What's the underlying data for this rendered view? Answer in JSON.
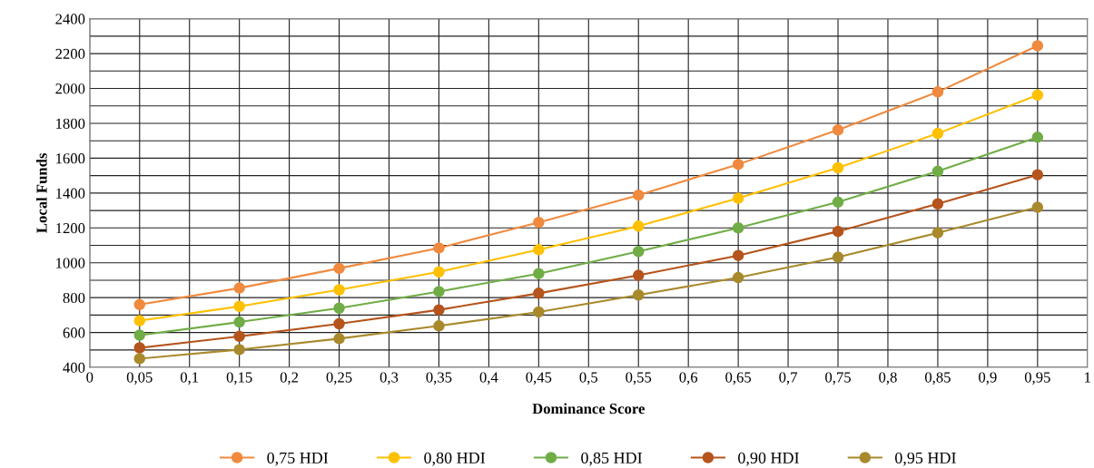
{
  "chart_data": {
    "type": "line",
    "xlabel": "Dominance Score",
    "ylabel": "Local Funds",
    "x": [
      0.05,
      0.15,
      0.25,
      0.35,
      0.45,
      0.55,
      0.65,
      0.75,
      0.85,
      0.95
    ],
    "series": [
      {
        "name": "0,75 HDI",
        "color": "#f08a3e",
        "values": [
          760,
          855,
          968,
          1085,
          1232,
          1388,
          1565,
          1762,
          1980,
          2245
        ]
      },
      {
        "name": "0,80 HDI",
        "color": "#ffc000",
        "values": [
          668,
          750,
          845,
          948,
          1075,
          1210,
          1370,
          1545,
          1742,
          1962
        ]
      },
      {
        "name": "0,85 HDI",
        "color": "#70ad47",
        "values": [
          585,
          660,
          740,
          835,
          938,
          1065,
          1200,
          1348,
          1525,
          1720
        ]
      },
      {
        "name": "0,90 HDI",
        "color": "#b5541c",
        "values": [
          512,
          578,
          650,
          730,
          825,
          928,
          1042,
          1180,
          1338,
          1505
        ]
      },
      {
        "name": "0,95 HDI",
        "color": "#a88a2c",
        "values": [
          450,
          502,
          565,
          638,
          718,
          815,
          915,
          1032,
          1172,
          1318
        ]
      }
    ],
    "xlim": [
      0,
      1
    ],
    "ylim": [
      400,
      2400
    ],
    "xticks": [
      0,
      {
        "value": 0.05,
        "label": "0,05"
      },
      {
        "value": 0.1,
        "label": "0,1"
      },
      {
        "value": 0.15,
        "label": "0,15"
      },
      {
        "value": 0.2,
        "label": "0,2"
      },
      {
        "value": 0.25,
        "label": "0,25"
      },
      {
        "value": 0.3,
        "label": "0,3"
      },
      {
        "value": 0.35,
        "label": "0,35"
      },
      {
        "value": 0.4,
        "label": "0,4"
      },
      {
        "value": 0.45,
        "label": "0,45"
      },
      {
        "value": 0.5,
        "label": "0,5"
      },
      {
        "value": 0.55,
        "label": "0,55"
      },
      {
        "value": 0.6,
        "label": "0,6"
      },
      {
        "value": 0.65,
        "label": "0,65"
      },
      {
        "value": 0.7,
        "label": "0,7"
      },
      {
        "value": 0.75,
        "label": "0,75"
      },
      {
        "value": 0.8,
        "label": "0,8"
      },
      {
        "value": 0.85,
        "label": "0,85"
      },
      {
        "value": 0.9,
        "label": "0,9"
      },
      {
        "value": 0.95,
        "label": "0,95"
      },
      1
    ],
    "yticks": [
      400,
      {
        "value": 500,
        "label": null
      },
      600,
      {
        "value": 700,
        "label": null
      },
      800,
      {
        "value": 900,
        "label": null
      },
      1000,
      {
        "value": 1100,
        "label": null
      },
      1200,
      {
        "value": 1300,
        "label": null
      },
      1400,
      {
        "value": 1500,
        "label": null
      },
      1600,
      {
        "value": 1700,
        "label": null
      },
      1800,
      {
        "value": 1900,
        "label": null
      },
      2000,
      {
        "value": 2100,
        "label": null
      },
      2200,
      {
        "value": 2300,
        "label": null
      },
      2400
    ],
    "grid": true,
    "legend": "bottom",
    "marker": "circle",
    "line_style": "solid"
  }
}
